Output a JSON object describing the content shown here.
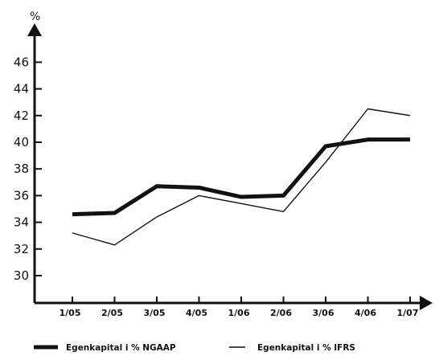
{
  "chart_data": {
    "type": "line",
    "ylabel": "%",
    "ylim": [
      28,
      48
    ],
    "yticks": [
      30,
      32,
      34,
      36,
      38,
      40,
      42,
      44,
      46
    ],
    "categories": [
      "1/05",
      "2/05",
      "3/05",
      "4/05",
      "1/06",
      "2/06",
      "3/06",
      "4/06",
      "1/07"
    ],
    "grid": false,
    "legend_position": "bottom",
    "series": [
      {
        "name": "Egenkapital i % NGAAP",
        "values": [
          34.6,
          34.7,
          36.7,
          36.6,
          35.9,
          36.0,
          39.7,
          40.2,
          40.2
        ],
        "color": "#111111",
        "style": "thick"
      },
      {
        "name": "Egenkapital i % IFRS",
        "values": [
          33.2,
          32.3,
          34.4,
          36.0,
          35.4,
          34.8,
          38.5,
          42.5,
          42.0
        ],
        "color": "#111111",
        "style": "thin"
      }
    ]
  }
}
